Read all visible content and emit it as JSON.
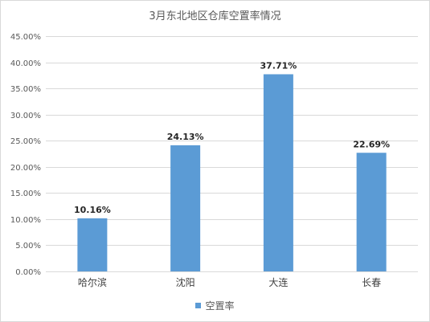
{
  "chart_data": {
    "type": "bar",
    "title": "3月东北地区仓库空置率情况",
    "categories": [
      "哈尔滨",
      "沈阳",
      "大连",
      "长春"
    ],
    "series": [
      {
        "name": "空置率",
        "values": [
          10.16,
          24.13,
          37.71,
          22.69
        ],
        "labels": [
          "10.16%",
          "24.13%",
          "37.71%",
          "22.69%"
        ],
        "color": "#5b9bd5"
      }
    ],
    "ylim": [
      0,
      45
    ],
    "yticks": [
      0,
      5,
      10,
      15,
      20,
      25,
      30,
      35,
      40,
      45
    ],
    "ytick_labels": [
      "0.00%",
      "5.00%",
      "10.00%",
      "15.00%",
      "20.00%",
      "25.00%",
      "30.00%",
      "35.00%",
      "40.00%",
      "45.00%"
    ],
    "xlabel": "",
    "ylabel": "",
    "grid": true,
    "legend_position": "bottom",
    "gridline_color": "#d9d9d9"
  }
}
